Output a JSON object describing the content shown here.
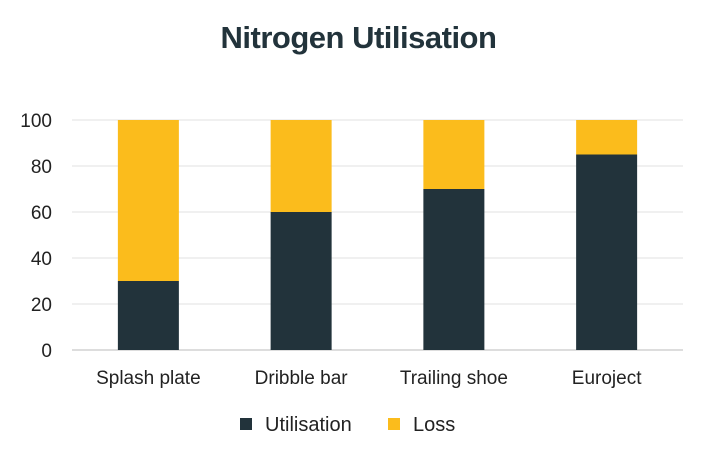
{
  "chart_data": {
    "type": "bar",
    "stacked": true,
    "title": "Nitrogen Utilisation",
    "categories": [
      "Splash plate",
      "Dribble bar",
      "Trailing shoe",
      "Euroject"
    ],
    "series": [
      {
        "name": "Utilisation",
        "values": [
          30,
          60,
          70,
          85
        ],
        "color": "#22333b"
      },
      {
        "name": "Loss",
        "values": [
          70,
          40,
          30,
          15
        ],
        "color": "#fbbc1c"
      }
    ],
    "ylim": [
      0,
      100
    ],
    "yticks": [
      0,
      20,
      40,
      60,
      80,
      100
    ],
    "grid": true,
    "legend": "bottom-center"
  }
}
